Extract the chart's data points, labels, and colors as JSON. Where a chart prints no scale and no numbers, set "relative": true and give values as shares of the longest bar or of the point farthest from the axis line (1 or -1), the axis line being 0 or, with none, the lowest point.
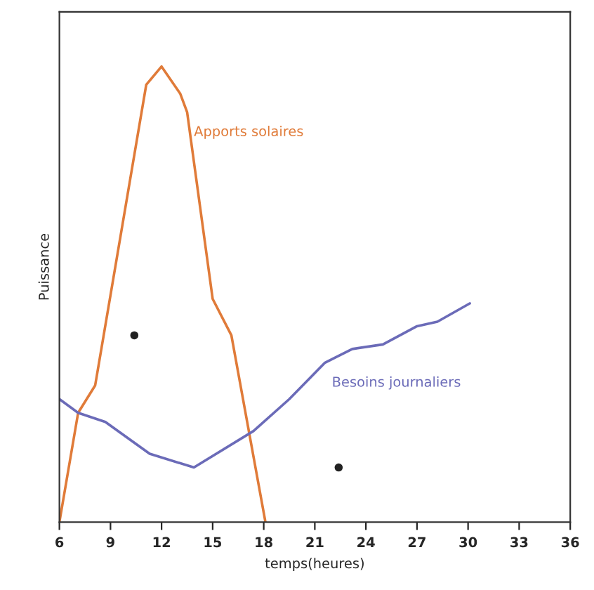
{
  "chart_data": {
    "type": "line",
    "relative": true,
    "xlabel": "temps(heures)",
    "ylabel": "Puissance",
    "xlim": [
      6,
      36
    ],
    "xticks": [
      6,
      9,
      12,
      15,
      18,
      21,
      24,
      27,
      30,
      33,
      36
    ],
    "grid": false,
    "line_style": "solid",
    "series": [
      {
        "name": "Apports solaires",
        "color": "#e07b39",
        "x": [
          6,
          7.1,
          8.1,
          11.1,
          12.0,
          13.1,
          13.5,
          15.0,
          16.1,
          18.1
        ],
        "values": [
          0,
          0.24,
          0.3,
          0.96,
          1.0,
          0.94,
          0.9,
          0.49,
          0.41,
          0
        ]
      },
      {
        "name": "Besoins journaliers",
        "color": "#6b6bb8",
        "x": [
          6,
          7.1,
          8.7,
          11.3,
          13.9,
          17.4,
          19.5,
          21.6,
          23.2,
          25.0,
          27.0,
          28.2,
          30.1
        ],
        "values": [
          0.27,
          0.24,
          0.22,
          0.15,
          0.12,
          0.2,
          0.27,
          0.35,
          0.38,
          0.39,
          0.43,
          0.44,
          0.48
        ]
      },
      {
        "type": "scatter",
        "color": "#222222",
        "x": [
          10.4,
          22.4
        ],
        "values": [
          0.41,
          0.12
        ]
      }
    ]
  }
}
